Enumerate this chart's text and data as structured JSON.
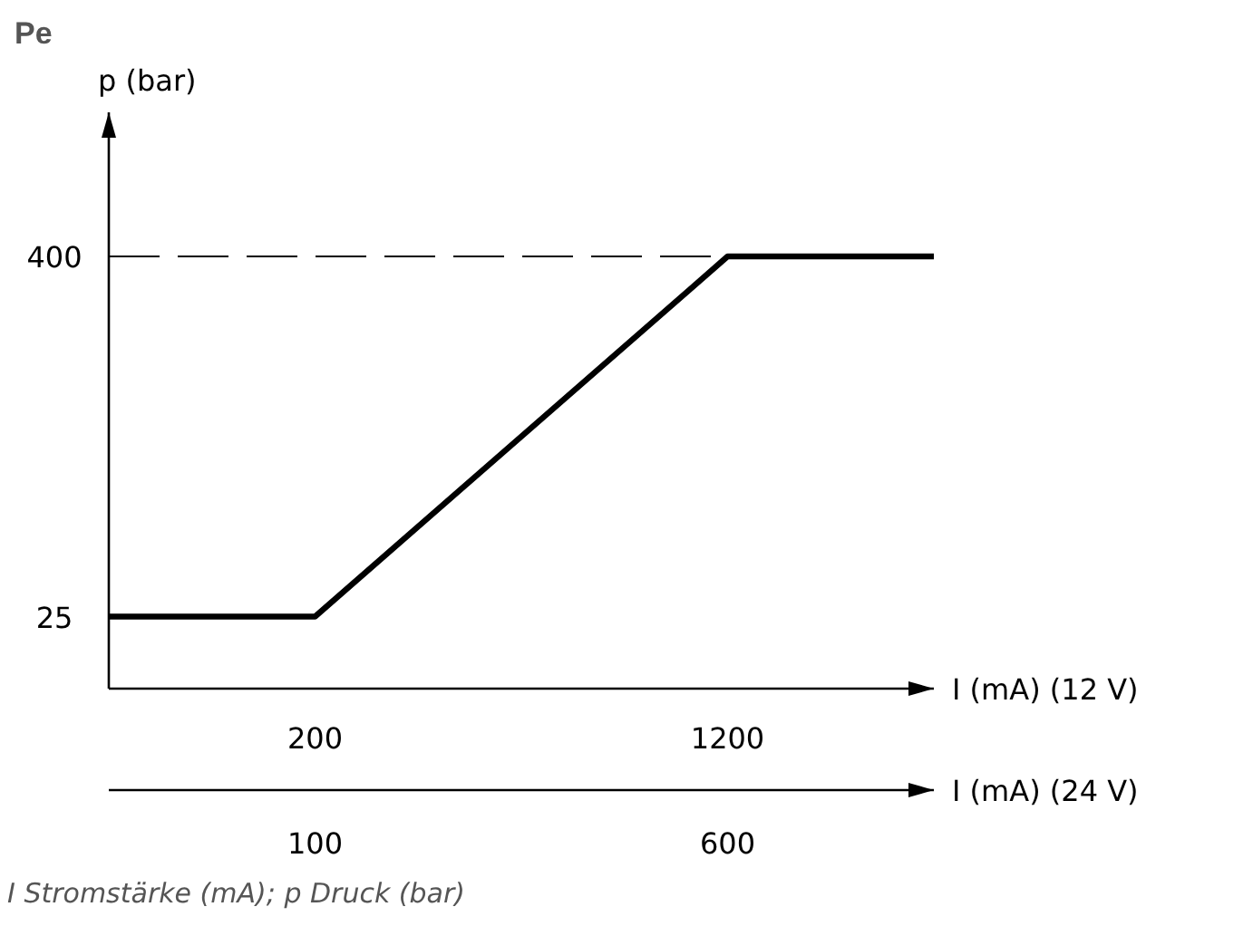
{
  "chart_data": {
    "type": "line",
    "title": "Pe",
    "xlabel": "I (mA) (12 V)",
    "x2label": "I (mA) (24 V)",
    "ylabel": "p (bar)",
    "annotations": [
      "I Stromstärke (mA); p Druck (bar)"
    ],
    "xlim": [
      -300,
      1700
    ],
    "xticks": [
      200,
      1200
    ],
    "x2lim": [
      -150,
      850
    ],
    "x2ticks": [
      100,
      600
    ],
    "ylim": [
      -50,
      550
    ],
    "yticks": [
      25,
      400
    ],
    "line_style": "solid",
    "ref_lines": [
      {
        "axis": "y",
        "value": 400,
        "color": "#000000",
        "line_style": "dashed"
      }
    ],
    "series": [
      {
        "color": "#000000",
        "x": [
          -300,
          200,
          1200,
          1700
        ],
        "values": [
          25,
          25,
          400,
          400
        ]
      }
    ]
  }
}
